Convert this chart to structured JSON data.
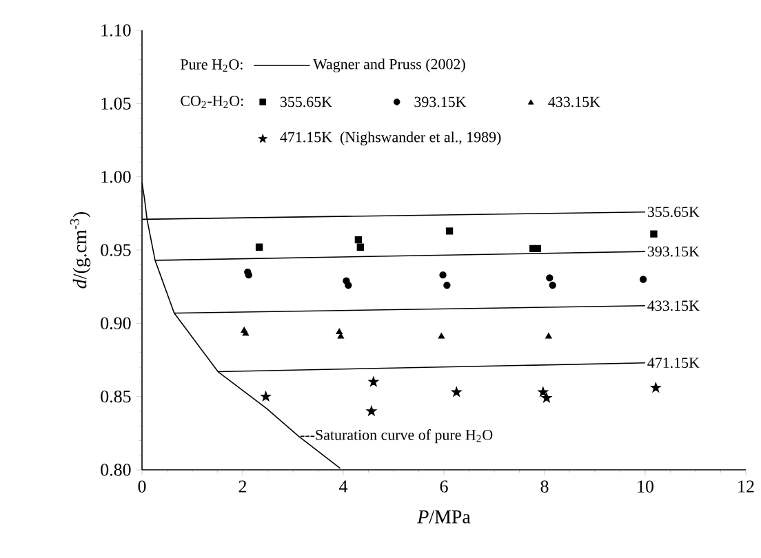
{
  "chart_data": {
    "type": "scatter",
    "xlabel": "*P*/MPa",
    "ylabel": "*d*/(g.cm$^{-3}$)",
    "xlim": [
      0,
      12
    ],
    "ylim": [
      0.8,
      1.1
    ],
    "xticks": [
      0,
      2,
      4,
      6,
      8,
      10,
      12
    ],
    "yticks": [
      {
        "value": 0.8,
        "label": "0.80"
      },
      {
        "value": 0.85,
        "label": "0.85"
      },
      {
        "value": 0.9,
        "label": "0.90"
      },
      {
        "value": 0.95,
        "label": "0.95"
      },
      {
        "value": 1.0,
        "label": "1.00"
      },
      {
        "value": 1.05,
        "label": "1.05"
      },
      {
        "value": 1.1,
        "label": "1.10"
      }
    ],
    "legend": "top left",
    "annotations": [
      "Pure H$_{2}$O:",
      "Wagner and Pruss (2002)",
      "CO$_{2}$-H$_{2}$O:",
      "(Nighswander et al., 1989)",
      {
        "text": "---Saturation curve of pure H$_{2}$O",
        "x": 3.1,
        "y": 0.823
      }
    ],
    "series": [
      {
        "name": "355.65K",
        "type": "line",
        "color": "#000000",
        "x": [
          0.0,
          10.0
        ],
        "values": [
          0.971,
          0.976
        ]
      },
      {
        "name": "393.15K",
        "type": "line",
        "color": "#000000",
        "x": [
          0.26,
          10.0
        ],
        "values": [
          0.943,
          0.949
        ]
      },
      {
        "name": "433.15K",
        "type": "line",
        "color": "#000000",
        "x": [
          0.64,
          10.0
        ],
        "values": [
          0.907,
          0.912
        ]
      },
      {
        "name": "471.15K",
        "type": "line",
        "color": "#000000",
        "x": [
          1.51,
          10.0
        ],
        "values": [
          0.867,
          0.873
        ]
      },
      {
        "type": "line",
        "color": "#000000",
        "x": [
          0.0,
          0.05,
          0.1,
          0.26,
          0.64,
          1.51,
          2.47,
          3.11,
          3.94
        ],
        "values": [
          0.996,
          0.985,
          0.971,
          0.943,
          0.907,
          0.867,
          0.842,
          0.823,
          0.801
        ]
      },
      {
        "name": "355.65K",
        "marker": "square",
        "color": "#000000",
        "x": [
          2.33,
          4.3,
          4.34,
          6.11,
          7.77,
          7.86,
          10.17
        ],
        "values": [
          0.952,
          0.957,
          0.952,
          0.963,
          0.951,
          0.951,
          0.961
        ]
      },
      {
        "name": "393.15K",
        "marker": "circle",
        "color": "#000000",
        "x": [
          2.1,
          2.12,
          4.06,
          4.1,
          5.98,
          6.06,
          8.1,
          8.16,
          9.96
        ],
        "values": [
          0.935,
          0.933,
          0.929,
          0.926,
          0.933,
          0.926,
          0.931,
          0.926,
          0.93
        ]
      },
      {
        "name": "433.15K",
        "marker": "triangle",
        "color": "#000000",
        "x": [
          2.03,
          2.06,
          3.92,
          3.95,
          5.95,
          8.08
        ],
        "values": [
          0.895,
          0.893,
          0.894,
          0.891,
          0.891,
          0.891
        ]
      },
      {
        "name": "471.15K",
        "marker": "star",
        "color": "#000000",
        "x": [
          2.46,
          4.6,
          4.56,
          6.25,
          7.97,
          8.04,
          10.21
        ],
        "values": [
          0.85,
          0.86,
          0.84,
          0.853,
          0.853,
          0.849,
          0.856
        ]
      }
    ]
  }
}
